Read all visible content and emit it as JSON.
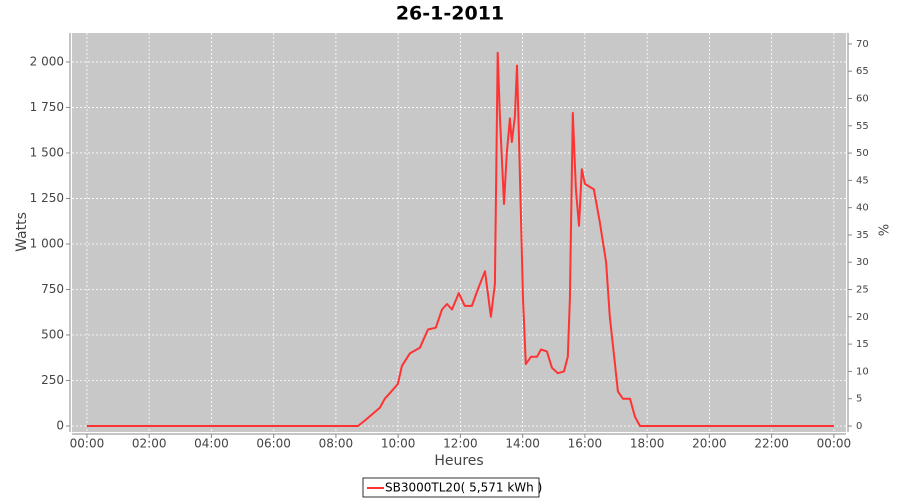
{
  "chart_data": {
    "type": "line",
    "title": "26-1-2011",
    "x_label": "Heures",
    "y_label": "Watts",
    "y2_label": "%",
    "xlim": [
      -0.48,
      24.39
    ],
    "xticks": [
      {
        "value": 0,
        "label": "00:00"
      },
      {
        "value": 2,
        "label": "02:00"
      },
      {
        "value": 4,
        "label": "04:00"
      },
      {
        "value": 6,
        "label": "06:00"
      },
      {
        "value": 8,
        "label": "08:00"
      },
      {
        "value": 10,
        "label": "10:00"
      },
      {
        "value": 12,
        "label": "12:00"
      },
      {
        "value": 14,
        "label": "14:00"
      },
      {
        "value": 16,
        "label": "16:00"
      },
      {
        "value": 18,
        "label": "18:00"
      },
      {
        "value": 20,
        "label": "20:00"
      },
      {
        "value": 22,
        "label": "22:00"
      },
      {
        "value": 24,
        "label": "00:00"
      }
    ],
    "ylim": [
      -33,
      2159
    ],
    "yticks": [
      0,
      250,
      500,
      750,
      {
        "value": 1000,
        "label": "1 000"
      },
      {
        "value": 1250,
        "label": "1 250"
      },
      {
        "value": 1500,
        "label": "1 500"
      },
      {
        "value": 1750,
        "label": "1 750"
      },
      {
        "value": 2000,
        "label": "2 000"
      }
    ],
    "y2lim": [
      -1.1,
      72
    ],
    "y2ticks": [
      0,
      5,
      10,
      15,
      20,
      25,
      30,
      35,
      40,
      45,
      50,
      55,
      60,
      65,
      70
    ],
    "grid": true,
    "legend": "bottom",
    "x": [
      0,
      8.71,
      8.93,
      9.41,
      9.57,
      9.73,
      9.99,
      10.12,
      10.38,
      10.7,
      10.96,
      11.21,
      11.41,
      11.57,
      11.73,
      11.95,
      12.14,
      12.37,
      12.56,
      12.79,
      12.98,
      13.11,
      13.2,
      13.27,
      13.4,
      13.49,
      13.59,
      13.65,
      13.75,
      13.82,
      13.88,
      14.01,
      14.1,
      14.27,
      14.46,
      14.59,
      14.78,
      14.94,
      15.13,
      15.33,
      15.45,
      15.52,
      15.61,
      15.71,
      15.81,
      15.9,
      16.0,
      16.29,
      16.48,
      16.68,
      16.8,
      16.93,
      17.06,
      17.22,
      17.45,
      17.61,
      17.77,
      24
    ],
    "series": [
      {
        "name": "SB3000TL20( 5,571 kWh )",
        "color": "#ff3333",
        "values": [
          0,
          0,
          30,
          100,
          150,
          180,
          230,
          330,
          400,
          430,
          530,
          540,
          640,
          670,
          640,
          730,
          660,
          660,
          750,
          850,
          600,
          780,
          2050,
          1700,
          1220,
          1500,
          1690,
          1560,
          1700,
          1980,
          1600,
          700,
          340,
          380,
          380,
          420,
          410,
          320,
          290,
          300,
          380,
          700,
          1720,
          1300,
          1100,
          1410,
          1330,
          1300,
          1120,
          900,
          600,
          400,
          190,
          150,
          150,
          50,
          0,
          0
        ]
      }
    ]
  }
}
